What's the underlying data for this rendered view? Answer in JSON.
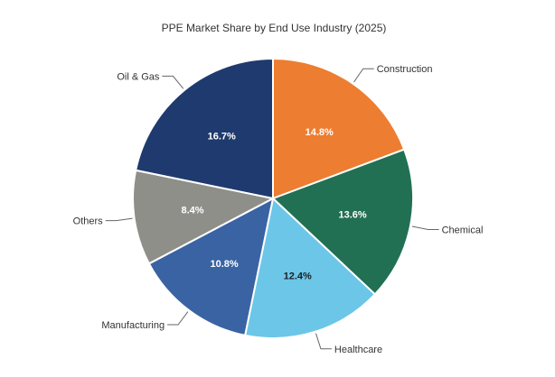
{
  "chart_data": {
    "type": "pie",
    "title": "PPE Market Share by End Use Industry (2025)",
    "slices": [
      {
        "name": "Construction",
        "value": 14.8,
        "label": "14.8%",
        "color": "#ed7d31",
        "label_color": "#ffffff"
      },
      {
        "name": "Chemical",
        "value": 13.6,
        "label": "13.6%",
        "color": "#217054",
        "label_color": "#ffffff"
      },
      {
        "name": "Healthcare",
        "value": 12.4,
        "label": "12.4%",
        "color": "#6cc6e8",
        "label_color": "#1f1f1f"
      },
      {
        "name": "Manufacturing",
        "value": 10.8,
        "label": "10.8%",
        "color": "#3a63a3",
        "label_color": "#ffffff"
      },
      {
        "name": "Others",
        "value": 8.4,
        "label": "8.4%",
        "color": "#8f8f8a",
        "label_color": "#ffffff"
      },
      {
        "name": "Oil & Gas",
        "value": 16.7,
        "label": "16.7%",
        "color": "#1f3a6e",
        "label_color": "#ffffff"
      }
    ],
    "start_angle_deg": 0,
    "direction": "clockwise",
    "labels": "outside-with-leader-lines",
    "legend": "none"
  }
}
